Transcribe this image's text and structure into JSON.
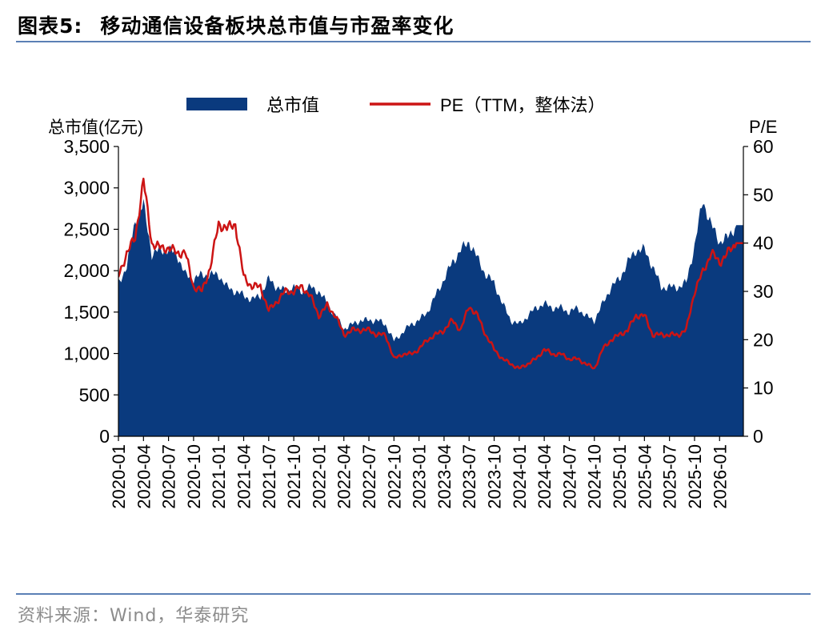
{
  "header": {
    "figure_label": "图表5:",
    "title": "移动通信设备板块总市值与市盈率变化"
  },
  "source": "资料来源：Wind，华泰研究",
  "colors": {
    "market_cap": "#0a3a7e",
    "pe": "#cc1414",
    "rule": "#5b7fb5"
  },
  "chart_data": {
    "type": "area",
    "title": "移动通信设备板块总市值与市盈率变化",
    "y_left_label": "总市值(亿元)",
    "y_right_label": "P/E",
    "y_left_ticks": [
      "0",
      "500",
      "1,000",
      "1,500",
      "2,000",
      "2,500",
      "3,000",
      "3,500"
    ],
    "y_right_ticks": [
      "0",
      "10",
      "20",
      "30",
      "40",
      "50",
      "60"
    ],
    "ylim_left": [
      0,
      3500
    ],
    "ylim_right": [
      0,
      60
    ],
    "x_tick_labels": [
      "2020-01",
      "2020-04",
      "2020-07",
      "2020-10",
      "2021-01",
      "2021-04",
      "2021-07",
      "2021-10",
      "2022-01",
      "2022-04",
      "2022-07",
      "2022-10",
      "2023-01",
      "2023-04",
      "2023-07",
      "2023-10",
      "2024-01",
      "2024-04",
      "2024-07",
      "2024-10",
      "2025-01",
      "2025-04",
      "2025-07",
      "2025-10",
      "2026-01"
    ],
    "legend_position": "top-center",
    "grid": false,
    "series": [
      {
        "name": "总市值",
        "type": "area",
        "axis": "left",
        "dates": [
          "2020-01",
          "2020-02",
          "2020-03",
          "2020-04",
          "2020-05",
          "2020-06",
          "2020-07",
          "2020-08",
          "2020-09",
          "2020-10",
          "2020-11",
          "2020-12",
          "2021-01",
          "2021-02",
          "2021-03",
          "2021-04",
          "2021-05",
          "2021-06",
          "2021-07",
          "2021-08",
          "2021-09",
          "2021-10",
          "2021-11",
          "2021-12",
          "2022-01",
          "2022-02",
          "2022-03",
          "2022-04",
          "2022-05",
          "2022-06",
          "2022-07",
          "2022-08",
          "2022-09",
          "2022-10",
          "2022-11",
          "2022-12",
          "2023-01",
          "2023-02",
          "2023-03",
          "2023-04",
          "2023-05",
          "2023-06",
          "2023-07",
          "2023-08",
          "2023-09",
          "2023-10",
          "2023-11",
          "2023-12",
          "2024-01",
          "2024-02",
          "2024-03",
          "2024-04",
          "2024-05",
          "2024-06",
          "2024-07",
          "2024-08",
          "2024-09",
          "2024-10",
          "2024-11",
          "2024-12",
          "2025-01",
          "2025-02",
          "2025-03",
          "2025-04",
          "2025-05",
          "2025-06",
          "2025-07",
          "2025-08",
          "2025-09",
          "2025-10",
          "2025-11",
          "2025-12",
          "2026-01",
          "2026-02",
          "2026-03"
        ],
        "values": [
          1850,
          2050,
          2600,
          2800,
          2200,
          2250,
          2250,
          2200,
          1950,
          1900,
          1950,
          1950,
          1950,
          1800,
          1750,
          1700,
          1650,
          1700,
          1900,
          1800,
          1750,
          1800,
          1750,
          1800,
          1750,
          1600,
          1450,
          1300,
          1350,
          1400,
          1400,
          1400,
          1350,
          1150,
          1250,
          1350,
          1400,
          1500,
          1700,
          1900,
          2100,
          2250,
          2350,
          2150,
          1950,
          1850,
          1600,
          1400,
          1350,
          1450,
          1550,
          1600,
          1550,
          1550,
          1500,
          1550,
          1450,
          1400,
          1600,
          1800,
          1900,
          2100,
          2250,
          2250,
          2050,
          1800,
          1800,
          1800,
          1850,
          2300,
          2850,
          2550,
          2350,
          2400,
          2550
        ]
      },
      {
        "name": "PE（TTM，整体法）",
        "type": "line",
        "axis": "right",
        "dates": [
          "2020-01",
          "2020-02",
          "2020-03",
          "2020-04",
          "2020-05",
          "2020-06",
          "2020-07",
          "2020-08",
          "2020-09",
          "2020-10",
          "2020-11",
          "2020-12",
          "2021-01",
          "2021-02",
          "2021-03",
          "2021-04",
          "2021-05",
          "2021-06",
          "2021-07",
          "2021-08",
          "2021-09",
          "2021-10",
          "2021-11",
          "2021-12",
          "2022-01",
          "2022-02",
          "2022-03",
          "2022-04",
          "2022-05",
          "2022-06",
          "2022-07",
          "2022-08",
          "2022-09",
          "2022-10",
          "2022-11",
          "2022-12",
          "2023-01",
          "2023-02",
          "2023-03",
          "2023-04",
          "2023-05",
          "2023-06",
          "2023-07",
          "2023-08",
          "2023-09",
          "2023-10",
          "2023-11",
          "2023-12",
          "2024-01",
          "2024-02",
          "2024-03",
          "2024-04",
          "2024-05",
          "2024-06",
          "2024-07",
          "2024-08",
          "2024-09",
          "2024-10",
          "2024-11",
          "2024-12",
          "2025-01",
          "2025-02",
          "2025-03",
          "2025-04",
          "2025-05",
          "2025-06",
          "2025-07",
          "2025-08",
          "2025-09",
          "2025-10",
          "2025-11",
          "2025-12",
          "2026-01",
          "2026-02",
          "2026-03"
        ],
        "values": [
          33,
          38,
          41,
          53,
          40,
          39,
          39,
          38,
          38,
          31,
          30,
          35,
          44,
          43,
          44,
          33,
          31,
          31,
          26,
          28,
          30,
          30,
          31,
          29,
          25,
          27,
          25,
          21,
          22,
          22,
          22,
          21,
          21,
          16,
          17,
          17,
          18,
          20,
          21,
          22,
          24,
          22,
          27,
          25,
          21,
          18,
          16,
          15,
          14,
          15,
          16,
          18,
          17,
          17,
          16,
          16,
          15,
          14,
          18,
          20,
          21,
          22,
          25,
          25,
          21,
          21,
          21,
          21,
          22,
          30,
          34,
          38,
          36,
          38,
          40
        ]
      }
    ]
  }
}
